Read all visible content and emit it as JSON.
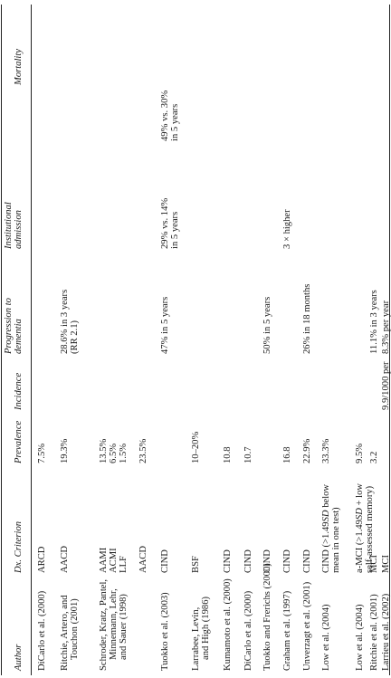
{
  "table": {
    "headers": {
      "author": "Author",
      "criterion_a": "Dx. Criterion",
      "prevalence": "Prevalence",
      "incidence": "Incidence",
      "progression_a": "Progression to",
      "progression_b": "dementia",
      "institutional_a": "Institutional",
      "institutional_b": "admission",
      "mortality": "Mortality"
    },
    "rows": [
      {
        "author": [
          "DiCarlo et al. (2000)"
        ],
        "criterion": [
          [
            "ARCD"
          ]
        ],
        "prevalence": [
          "7.5%"
        ],
        "incidence": [],
        "progression": [],
        "institutional": [],
        "mortality": []
      },
      {
        "author": [
          "Ritchie, Artero, and",
          "Touchon (2001)"
        ],
        "criterion": [
          [
            "AACD"
          ]
        ],
        "prevalence": [
          "19.3%"
        ],
        "incidence": [],
        "progression": [
          "28.6% in 3 years",
          "(RR 2.1)"
        ],
        "institutional": [],
        "mortality": []
      },
      {
        "author": [
          "Schroder, Kratz, Pantel,",
          "Minnemann, Lehr,",
          "and Sauer (1998)"
        ],
        "criterion": [
          [
            "AAMI"
          ],
          [
            "ACMI"
          ],
          [
            "LLF"
          ],
          [
            ""
          ],
          [
            "AACD"
          ]
        ],
        "prevalence": [
          "13.5%",
          "6.5%",
          "1.5%",
          "",
          "23.5%"
        ],
        "incidence": [],
        "progression": [],
        "institutional": [],
        "mortality": []
      },
      {
        "author": [
          "Tuokko et al. (2003)"
        ],
        "criterion": [
          [
            "CIND"
          ]
        ],
        "prevalence": [],
        "incidence": [],
        "progression": [
          "47% in 5 years"
        ],
        "institutional": [
          "29% vs. 14%",
          "in 5 years"
        ],
        "mortality": [
          "49% vs. 30%",
          "in 5 years"
        ]
      },
      {
        "author": [
          "Larrabee, Levin,",
          "and High (1986)"
        ],
        "criterion": [
          [
            "BSF"
          ]
        ],
        "prevalence": [
          "10–20%"
        ],
        "incidence": [],
        "progression": [],
        "institutional": [],
        "mortality": []
      },
      {
        "author": [
          "Kumamoto et al. (2000)"
        ],
        "criterion": [
          [
            "CIND"
          ]
        ],
        "prevalence": [
          "10.8"
        ],
        "incidence": [],
        "progression": [],
        "institutional": [],
        "mortality": []
      },
      {
        "author": [
          "DiCarlo et al. (2000)"
        ],
        "criterion": [
          [
            "CIND"
          ]
        ],
        "prevalence": [
          "10.7"
        ],
        "incidence": [],
        "progression": [],
        "institutional": [],
        "mortality": []
      },
      {
        "author": [
          "Tuokko and Frerichs (2000)"
        ],
        "criterion": [
          [
            "CIND"
          ]
        ],
        "prevalence": [],
        "incidence": [],
        "progression": [
          "50% in 5 years"
        ],
        "institutional": [],
        "mortality": []
      },
      {
        "author": [
          "Graham et al. (1997)"
        ],
        "criterion": [
          [
            "CIND"
          ]
        ],
        "prevalence": [
          "16.8"
        ],
        "incidence": [],
        "progression": [],
        "institutional": [
          "3 × higher"
        ],
        "mortality": []
      },
      {
        "author": [
          "Unverzagt et al. (2001)"
        ],
        "criterion": [
          [
            "CIND"
          ]
        ],
        "prevalence": [
          "22.9%"
        ],
        "incidence": [],
        "progression": [
          "26% in 18 months"
        ],
        "institutional": [],
        "mortality": []
      },
      {
        "author": [
          "Low et al. (2004)"
        ],
        "criterion": [
          [
            "CIND (>1.49",
            "SD",
            " below"
          ],
          [
            "mean in one test)"
          ]
        ],
        "prevalence": [
          "33.3%"
        ],
        "incidence": [],
        "progression": [],
        "institutional": [],
        "mortality": []
      },
      {
        "author": [
          "Low et al. (2004)"
        ],
        "criterion": [
          [
            "a-MCI (>1.49",
            "SD",
            " + low"
          ],
          [
            "self-assessed memory)"
          ]
        ],
        "prevalence": [
          "9.5%"
        ],
        "incidence": [],
        "progression": [],
        "institutional": [],
        "mortality": []
      },
      {
        "author": [
          "Ritchie et al. (2001)"
        ],
        "criterion": [
          [
            "MCI"
          ]
        ],
        "prevalence": [
          "3.2"
        ],
        "incidence": [],
        "progression": [
          "11.1% in 3 years"
        ],
        "institutional": [],
        "mortality": []
      },
      {
        "author": [
          "Larrieu et al. (2002)"
        ],
        "criterion": [
          [
            "MCI"
          ]
        ],
        "prevalence": [],
        "incidence": [
          "9.9/1000 per",
          "year"
        ],
        "progression": [
          "8.3% per year"
        ],
        "institutional": [],
        "mortality": []
      }
    ]
  }
}
